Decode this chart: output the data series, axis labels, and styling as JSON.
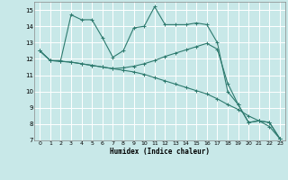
{
  "xlabel": "Humidex (Indice chaleur)",
  "bg_color": "#c8e8e8",
  "grid_color": "#ffffff",
  "line_color": "#2d7a6e",
  "xlim": [
    -0.5,
    23.5
  ],
  "ylim": [
    7,
    15.5
  ],
  "xticks": [
    0,
    1,
    2,
    3,
    4,
    5,
    6,
    7,
    8,
    9,
    10,
    11,
    12,
    13,
    14,
    15,
    16,
    17,
    18,
    19,
    20,
    21,
    22,
    23
  ],
  "yticks": [
    7,
    8,
    9,
    10,
    11,
    12,
    13,
    14,
    15
  ],
  "line1_x": [
    0,
    1,
    2,
    3,
    4,
    5,
    6,
    7,
    8,
    9,
    10,
    11,
    12,
    13,
    14,
    15,
    16,
    17,
    18,
    19,
    20,
    21,
    22,
    23
  ],
  "line1_y": [
    12.5,
    11.9,
    11.9,
    14.7,
    14.4,
    14.4,
    13.3,
    12.1,
    12.5,
    13.9,
    14.0,
    15.2,
    14.1,
    14.1,
    14.1,
    14.2,
    14.1,
    13.0,
    10.0,
    9.2,
    8.1,
    8.2,
    8.1,
    7.1
  ],
  "line2_x": [
    0,
    1,
    2,
    3,
    4,
    5,
    6,
    7,
    8,
    9,
    10,
    11,
    12,
    13,
    14,
    15,
    16,
    17,
    18,
    19,
    20,
    21,
    22,
    23
  ],
  "line2_y": [
    12.5,
    11.9,
    11.85,
    11.8,
    11.7,
    11.6,
    11.5,
    11.4,
    11.3,
    11.2,
    11.05,
    10.85,
    10.65,
    10.45,
    10.25,
    10.05,
    9.85,
    9.55,
    9.2,
    8.9,
    8.5,
    8.2,
    7.85,
    7.1
  ],
  "line3_x": [
    0,
    1,
    2,
    3,
    4,
    5,
    6,
    7,
    8,
    9,
    10,
    11,
    12,
    13,
    14,
    15,
    16,
    17,
    18,
    19,
    20,
    21,
    22,
    23
  ],
  "line3_y": [
    12.5,
    11.9,
    11.85,
    11.8,
    11.7,
    11.6,
    11.5,
    11.4,
    11.45,
    11.55,
    11.7,
    11.9,
    12.15,
    12.35,
    12.55,
    12.75,
    12.95,
    12.6,
    10.5,
    9.2,
    8.1,
    8.2,
    8.1,
    7.1
  ]
}
